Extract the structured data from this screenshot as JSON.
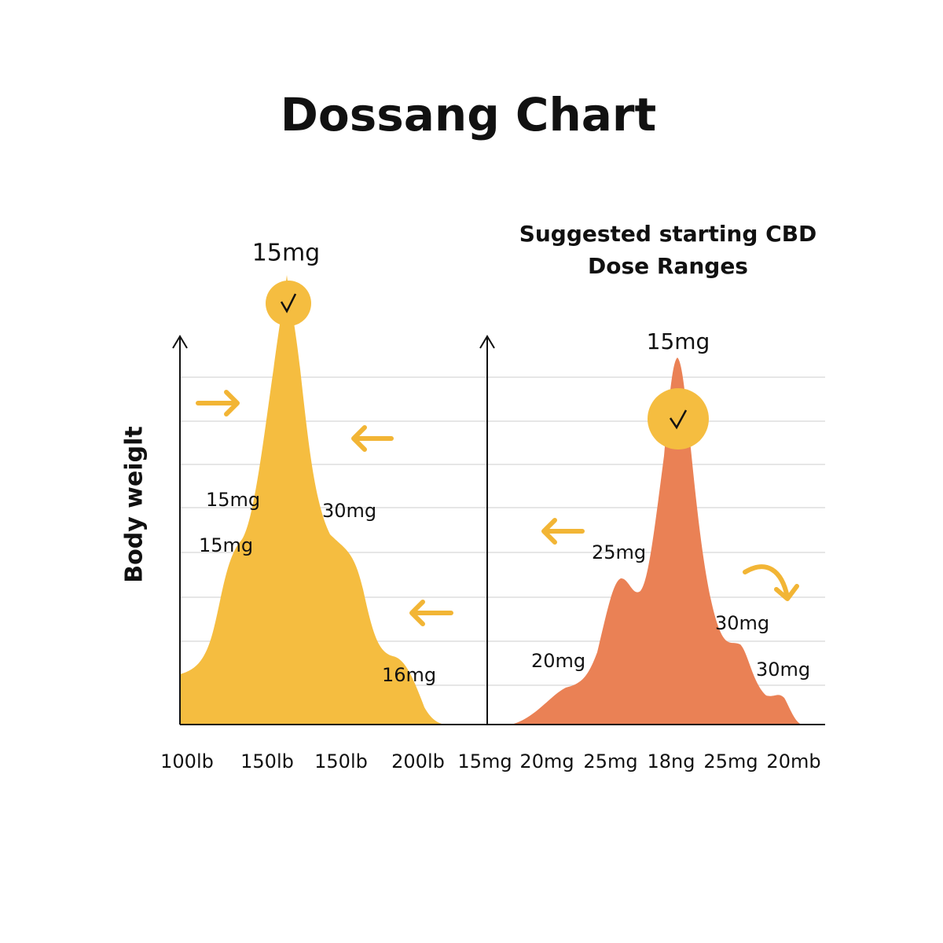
{
  "title": "Dossang Chart",
  "left_panel": {
    "y_axis_label": "Body weiglt",
    "peak_label": "15mg",
    "annotations": [
      "15mg",
      "15mg",
      "30mg",
      "16mg"
    ],
    "x_labels": [
      "100lb",
      "150lb",
      "150lb",
      "200lb"
    ]
  },
  "right_panel": {
    "subtitle": [
      "Suggested starting CBD",
      "Dose Ranges"
    ],
    "peak_label": "15mg",
    "annotations": [
      "25mg",
      "20mg",
      "30mg",
      "30mg"
    ],
    "x_labels": [
      "15mg",
      "20mg",
      "25mg",
      "18ng",
      "25mg",
      "20mb"
    ]
  }
}
